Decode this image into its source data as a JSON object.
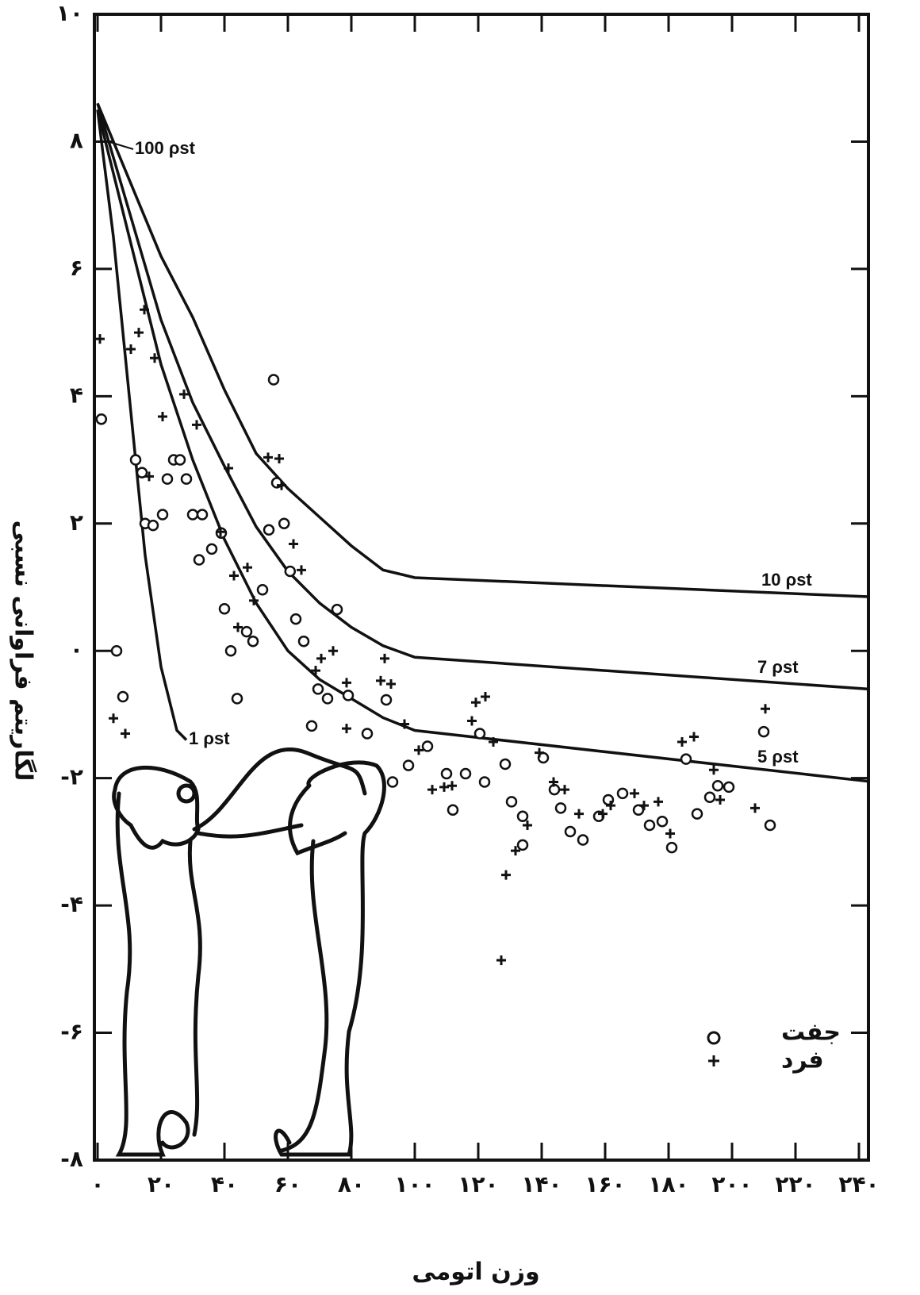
{
  "chart_data": {
    "type": "scatter",
    "xlabel": "وزن اتومی",
    "ylabel": "لگاریتم فراوانی نسبی",
    "annotation": "100 ρst",
    "xlim": [
      -1,
      243
    ],
    "ylim": [
      -8,
      10
    ],
    "xticks": [
      {
        "value": 0,
        "label": "۰"
      },
      {
        "value": 20,
        "label": "۲۰"
      },
      {
        "value": 40,
        "label": "۴۰"
      },
      {
        "value": 60,
        "label": "۶۰"
      },
      {
        "value": 80,
        "label": "۸۰"
      },
      {
        "value": 100,
        "label": "۱۰۰"
      },
      {
        "value": 120,
        "label": "۱۲۰"
      },
      {
        "value": 140,
        "label": "۱۴۰"
      },
      {
        "value": 160,
        "label": "۱۶۰"
      },
      {
        "value": 180,
        "label": "۱۸۰"
      },
      {
        "value": 200,
        "label": "۲۰۰"
      },
      {
        "value": 220,
        "label": "۲۲۰"
      },
      {
        "value": 240,
        "label": "۲۴۰"
      }
    ],
    "yticks": [
      {
        "value": 10,
        "label": "۱۰"
      },
      {
        "value": 8,
        "label": "۸"
      },
      {
        "value": 6,
        "label": "۶"
      },
      {
        "value": 4,
        "label": "۴"
      },
      {
        "value": 2,
        "label": "۲"
      },
      {
        "value": 0,
        "label": "۰"
      },
      {
        "value": -2,
        "label": "-۲"
      },
      {
        "value": -4,
        "label": "-۴"
      },
      {
        "value": -6,
        "label": "-۶"
      },
      {
        "value": -8,
        "label": "-۸"
      }
    ],
    "series": [
      {
        "name": "جفت",
        "marker": "circle",
        "color": "#111111",
        "x": [
          1.2,
          6,
          8,
          12,
          14,
          15,
          17.5,
          20.5,
          22,
          24,
          26,
          28,
          30,
          33,
          32,
          36,
          39,
          40,
          42,
          44,
          47,
          49,
          52,
          54,
          55.5,
          56.5,
          58.8,
          60.7,
          62.5,
          65,
          67.5,
          69.5,
          72.5,
          75.5,
          79,
          85,
          91,
          93,
          98,
          104,
          110,
          112,
          116,
          120.5,
          122,
          128.5,
          130.5,
          134,
          134,
          140.5,
          144,
          146,
          149,
          153,
          158,
          161,
          165.5,
          170.5,
          174,
          178,
          181,
          185.5,
          189,
          193,
          195.5,
          199,
          210,
          212
        ],
        "values": [
          3.64,
          0,
          -0.72,
          3.0,
          2.8,
          2.0,
          1.97,
          2.14,
          2.7,
          3.0,
          3.0,
          2.7,
          2.14,
          2.14,
          1.43,
          1.6,
          1.85,
          0.66,
          0,
          -0.75,
          0.3,
          0.15,
          0.96,
          1.9,
          4.26,
          2.64,
          2.0,
          1.25,
          0.5,
          0.15,
          -1.18,
          -0.6,
          -0.75,
          0.65,
          -0.7,
          -1.3,
          -0.77,
          -2.06,
          -1.8,
          -1.5,
          -1.93,
          -2.5,
          -1.93,
          -1.3,
          -2.06,
          -1.78,
          -2.37,
          -2.6,
          -3.05,
          -1.68,
          -2.18,
          -2.47,
          -2.84,
          -2.97,
          -2.6,
          -2.34,
          -2.24,
          -2.5,
          -2.74,
          -2.68,
          -3.09,
          -1.7,
          -2.56,
          -2.3,
          -2.12,
          -2.14,
          -1.27,
          -2.74
        ]
      },
      {
        "name": "فرد",
        "marker": "plus",
        "color": "#111111",
        "x": [
          0.75,
          5,
          8.75,
          10.5,
          13,
          14.75,
          16.25,
          18,
          20.5,
          27.25,
          31.25,
          38.75,
          41.25,
          43,
          47.25,
          49.25,
          44.25,
          53.75,
          57.25,
          58,
          61.75,
          64.25,
          68.75,
          70.5,
          74.25,
          78.5,
          78.5,
          89.25,
          90.5,
          92.5,
          96.75,
          101.25,
          105.5,
          109.25,
          111.75,
          118,
          119.25,
          122.25,
          124.75,
          128.75,
          131.75,
          127.25,
          135.5,
          139.25,
          143.75,
          147.25,
          151.75,
          159.25,
          161.75,
          169.25,
          172.25,
          176.75,
          180.5,
          184.25,
          188,
          194.25,
          196.25,
          207.25,
          210.5
        ],
        "values": [
          4.9,
          -1.06,
          -1.3,
          4.74,
          5.0,
          5.36,
          2.74,
          4.6,
          3.68,
          4.03,
          3.55,
          1.87,
          2.87,
          1.18,
          1.31,
          0.79,
          0.37,
          3.04,
          3.02,
          2.6,
          1.68,
          1.27,
          -0.31,
          -0.12,
          0,
          -0.5,
          -1.22,
          -0.47,
          -0.12,
          -0.52,
          -1.15,
          -1.56,
          -2.18,
          -2.14,
          -2.12,
          -1.1,
          -0.81,
          -0.72,
          -1.43,
          -3.52,
          -3.14,
          -4.86,
          -2.74,
          -1.6,
          -2.06,
          -2.18,
          -2.56,
          -2.56,
          -2.43,
          -2.24,
          -2.43,
          -2.37,
          -2.87,
          -1.43,
          -1.35,
          -1.87,
          -2.34,
          -2.47,
          -0.91
        ]
      }
    ],
    "curves": [
      {
        "name": "10 ρst",
        "color": "#111111",
        "x": [
          0,
          10,
          20,
          30,
          40,
          50,
          60,
          70,
          80,
          90,
          100,
          243
        ],
        "values": [
          8.6,
          7.4,
          6.2,
          5.24,
          4.1,
          3.1,
          2.55,
          2.1,
          1.65,
          1.27,
          1.15,
          0.85
        ]
      },
      {
        "name": "7 ρst",
        "color": "#111111",
        "x": [
          0,
          10,
          20,
          30,
          40,
          50,
          60,
          70,
          80,
          90,
          100,
          243
        ],
        "values": [
          8.6,
          6.9,
          5.2,
          3.9,
          2.9,
          1.95,
          1.25,
          0.75,
          0.37,
          0.08,
          -0.1,
          -0.6
        ]
      },
      {
        "name": "5 ρst",
        "color": "#111111",
        "x": [
          0,
          10,
          20,
          30,
          40,
          50,
          60,
          70,
          80,
          90,
          100,
          243
        ],
        "values": [
          8.5,
          6.5,
          4.5,
          3.0,
          1.75,
          0.75,
          0,
          -0.45,
          -0.75,
          -1.05,
          -1.25,
          -2.05
        ]
      },
      {
        "name": "1 ρst",
        "color": "#111111",
        "x": [
          0,
          5,
          10,
          15,
          20,
          25,
          28
        ],
        "values": [
          8.5,
          6.5,
          4.0,
          1.5,
          -0.25,
          -1.25,
          -1.4
        ]
      }
    ]
  }
}
